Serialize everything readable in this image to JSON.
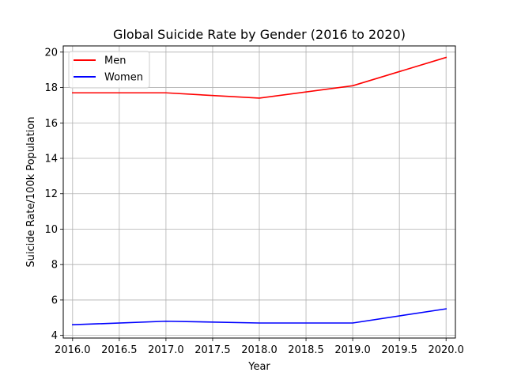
{
  "chart_data": {
    "type": "line",
    "title": "Global Suicide Rate by Gender (2016 to 2020)",
    "xlabel": "Year",
    "ylabel": "Suicide Rate/100k Population",
    "x": [
      2016,
      2017,
      2018,
      2019,
      2020
    ],
    "series": [
      {
        "name": "Men",
        "color": "#ff0000",
        "values": [
          17.7,
          17.7,
          17.4,
          18.1,
          19.7
        ]
      },
      {
        "name": "Women",
        "color": "#0000ff",
        "values": [
          4.6,
          4.8,
          4.7,
          4.7,
          5.5
        ]
      }
    ],
    "xlim": [
      2015.9,
      2020.1
    ],
    "ylim": [
      3.85,
      20.35
    ],
    "xticks": [
      2016.0,
      2016.5,
      2017.0,
      2017.5,
      2018.0,
      2018.5,
      2019.0,
      2019.5,
      2020.0
    ],
    "xtick_labels": [
      "2016.0",
      "2016.5",
      "2017.0",
      "2017.5",
      "2018.0",
      "2018.5",
      "2019.0",
      "2019.5",
      "2020.0"
    ],
    "yticks": [
      4,
      6,
      8,
      10,
      12,
      14,
      16,
      18,
      20
    ],
    "ytick_labels": [
      "4",
      "6",
      "8",
      "10",
      "12",
      "14",
      "16",
      "18",
      "20"
    ],
    "grid": true,
    "legend_position": "upper-left"
  }
}
